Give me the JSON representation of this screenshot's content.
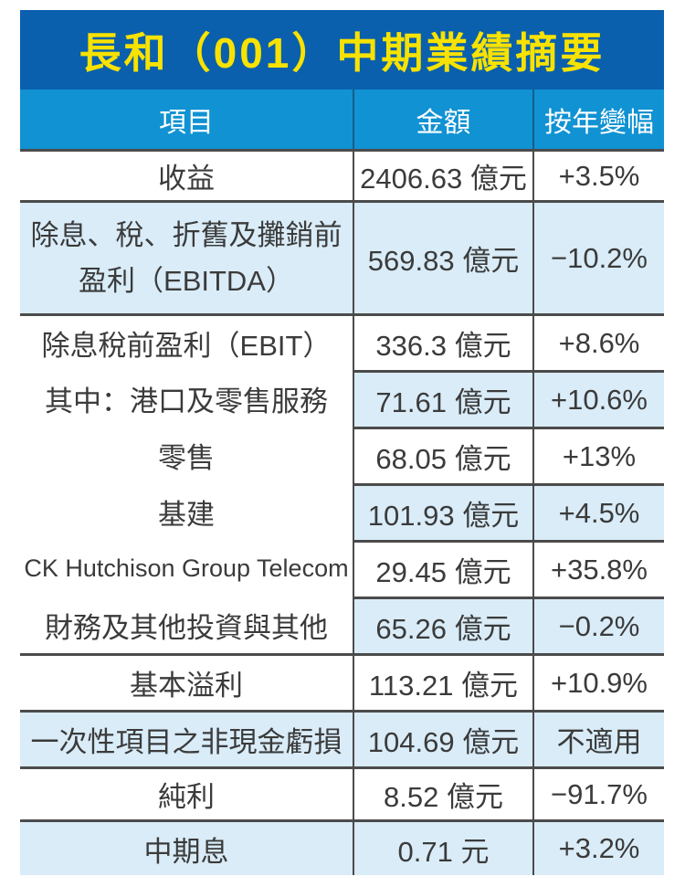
{
  "chart_data": {
    "type": "table",
    "title": "長和（001）中期業績摘要",
    "columns": [
      "項目",
      "金額",
      "按年變幅"
    ],
    "rows": [
      [
        "收益",
        "2406.63 億元",
        "+3.5%"
      ],
      [
        "除息、稅、折舊及攤銷前\n盈利（EBITDA）",
        "569.83 億元",
        "−10.2%"
      ],
      [
        "除息稅前盈利（EBIT）",
        "336.3 億元",
        "+8.6%"
      ],
      [
        "其中：港口及零售服務",
        "71.61 億元",
        "+10.6%"
      ],
      [
        "零售",
        "68.05 億元",
        "+13%"
      ],
      [
        "基建",
        "101.93 億元",
        "+4.5%"
      ],
      [
        "CK Hutchison Group Telecom",
        "29.45 億元",
        "+35.8%"
      ],
      [
        "財務及其他投資與其他",
        "65.26 億元",
        "−0.2%"
      ],
      [
        "基本溢利",
        "113.21 億元",
        "+10.9%"
      ],
      [
        "一次性項目之非現金虧損",
        "104.69 億元",
        "不適用"
      ],
      [
        "純利",
        "8.52 億元",
        "−91.7%"
      ],
      [
        "中期息",
        "0.71 元",
        "+3.2%"
      ]
    ]
  },
  "colors": {
    "title_bg": "#0a60ad",
    "title_text": "#f8e200",
    "header_bg": "#1092d3",
    "header_text": "#ffffff",
    "stripe": "#d9ecf8",
    "border": "#4b4b4b",
    "header_divider": "#155e87",
    "text": "#3b3b3b"
  }
}
